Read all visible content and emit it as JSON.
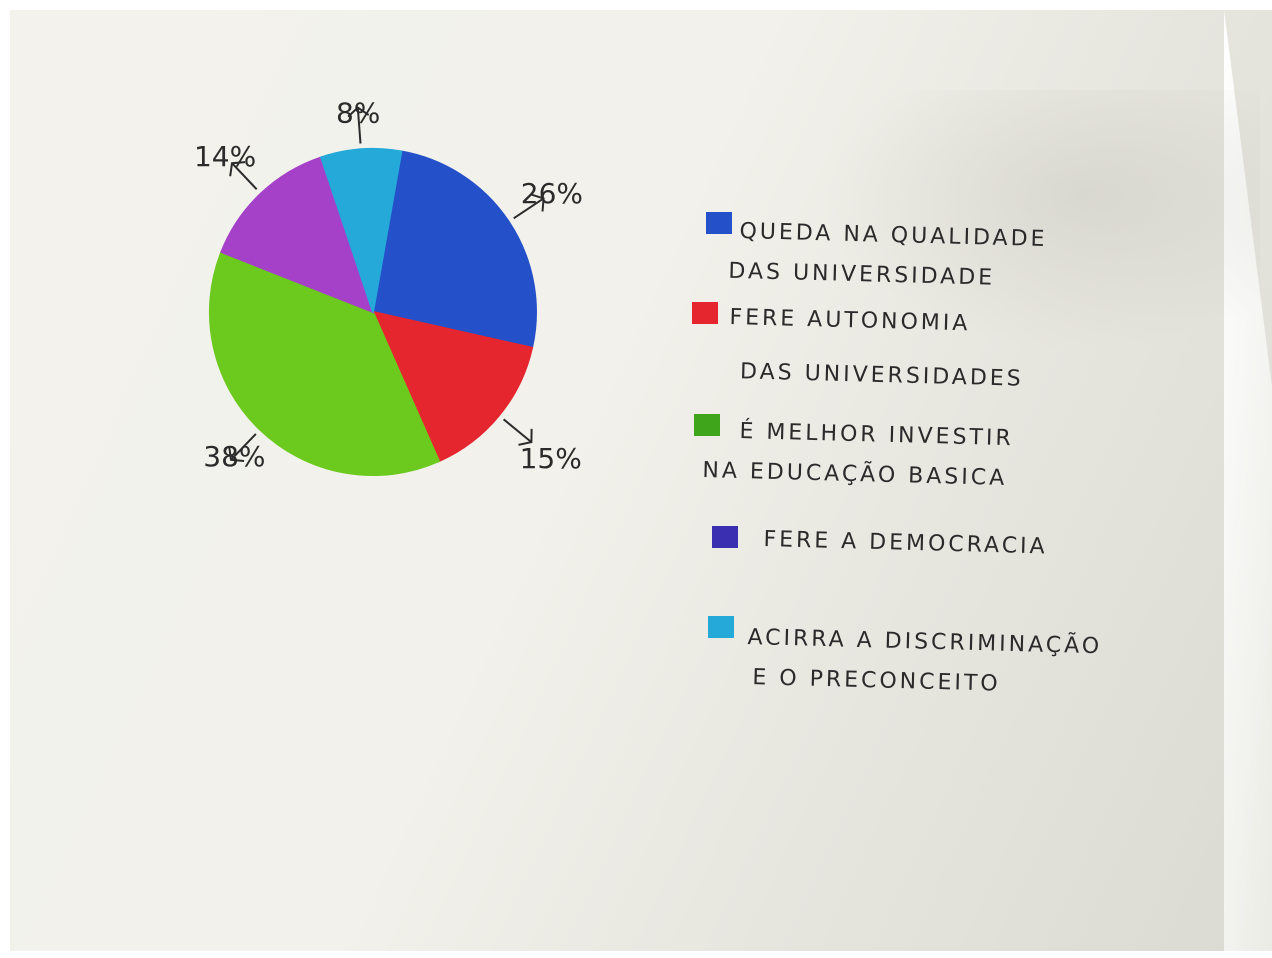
{
  "chart_data": {
    "type": "pie",
    "title": "",
    "slices": [
      {
        "label_pct": "26%",
        "value": 26,
        "color": "#2451c9"
      },
      {
        "label_pct": "15%",
        "value": 15,
        "color": "#e5262f"
      },
      {
        "label_pct": "38%",
        "value": 38,
        "color": "#6cc91e"
      },
      {
        "label_pct": "14%",
        "value": 14,
        "color": "#a541c9"
      },
      {
        "label_pct": "8%",
        "value": 8,
        "color": "#25a9d9"
      }
    ],
    "legend_placement": "right",
    "legend": [
      {
        "line1": "QUEDA NA QUALIDADE",
        "line2": "DAS UNIVERSIDADE",
        "color": "#2451c9"
      },
      {
        "line1": "FERE AUTONOMIA",
        "line2": "DAS UNIVERSIDADES",
        "color": "#e5262f"
      },
      {
        "line1": "É MELHOR INVESTIR",
        "line2": "NA EDUCAÇÃO BASICA",
        "color": "#3fa51a"
      },
      {
        "line1": "FERE A DEMOCRACIA",
        "line2": "",
        "color": "#3a2fb0"
      },
      {
        "line1": "ACIRRA A DISCRIMINAÇÃO",
        "line2": "E O PRECONCEITO",
        "color": "#25a9d9"
      }
    ]
  }
}
